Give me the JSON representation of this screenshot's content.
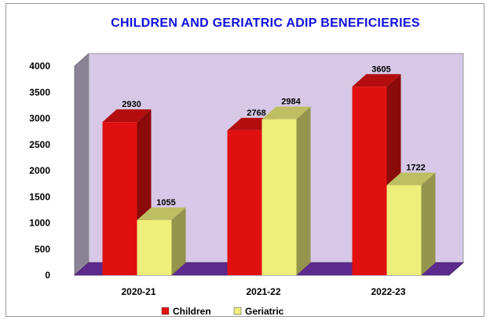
{
  "chart_data": {
    "type": "bar",
    "title": "CHILDREN AND GERIATRIC ADIP BENEFICIERIES",
    "categories": [
      "2020-21",
      "2021-22",
      "2022-23"
    ],
    "series": [
      {
        "name": "Children",
        "values": [
          2930,
          2768,
          3605
        ],
        "color": "#e01010"
      },
      {
        "name": "Geriatric",
        "values": [
          1055,
          2984,
          1722
        ],
        "color": "#eeee7a"
      }
    ],
    "yticks": [
      "0",
      "500",
      "1000",
      "1500",
      "2000",
      "2500",
      "3000",
      "3500",
      "4000"
    ],
    "ylim": [
      0,
      4000
    ],
    "legend_placement": "bottom",
    "three_d": true,
    "wall_color": "#d6c8e6",
    "floor_color": "#5c2a8c"
  }
}
